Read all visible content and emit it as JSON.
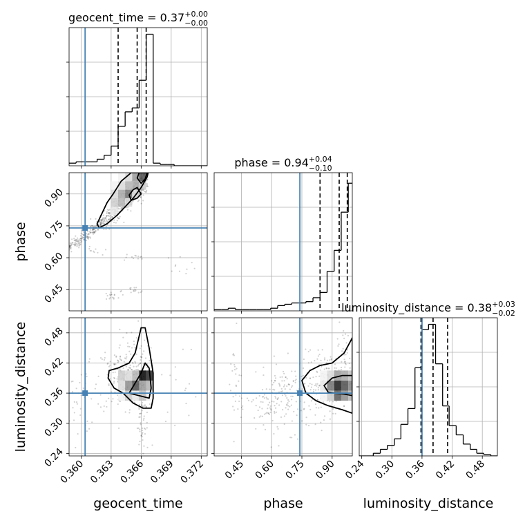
{
  "figure": {
    "style": {
      "grid_color": "#b0b0b0",
      "hist_color": "#000000",
      "truth_color": "#4682b4",
      "sample_color": "#000000"
    }
  },
  "chart_data": {
    "type": "corner",
    "parameters": [
      "geocent_time",
      "phase",
      "luminosity_distance"
    ],
    "truths": {
      "geocent_time": 0.3604,
      "phase": 0.74,
      "luminosity_distance": 0.36
    },
    "diagonal": [
      {
        "name": "geocent_time",
        "title_prefix": "geocent_time = 0.37",
        "title_sup": "+0.00",
        "title_sub": "−0.00",
        "xlim": [
          0.3588,
          0.3726
        ],
        "ticks": [
          0.36,
          0.363,
          0.366,
          0.369,
          0.372
        ],
        "tick_labels": [
          "0.360",
          "0.363",
          "0.366",
          "0.369",
          "0.372"
        ],
        "axis_label": "geocent_time",
        "quantiles": [
          0.3637,
          0.3656,
          0.3665
        ],
        "ylim": [
          0,
          1.05
        ],
        "hist": {
          "edges": [
            0.3588,
            0.3595,
            0.3602,
            0.3609,
            0.3616,
            0.3623,
            0.363,
            0.3637,
            0.3644,
            0.3651,
            0.3658,
            0.3665,
            0.3672,
            0.3679,
            0.3686,
            0.3693,
            0.37,
            0.3707,
            0.3714,
            0.3721,
            0.3726
          ],
          "counts": [
            0.02,
            0.03,
            0.03,
            0.03,
            0.05,
            0.08,
            0.15,
            0.3,
            0.41,
            0.44,
            0.65,
            1.0,
            0.02,
            0.01,
            0.01,
            0.0,
            0.0,
            0.0,
            0.0,
            0.0
          ]
        }
      },
      {
        "name": "phase",
        "title_prefix": "phase = 0.94",
        "title_sup": "+0.04",
        "title_sub": "−0.10",
        "xlim": [
          0.315,
          1.0
        ],
        "ticks": [
          0.45,
          0.6,
          0.75,
          0.9
        ],
        "tick_labels": [
          "0.45",
          "0.60",
          "0.75",
          "0.90"
        ],
        "axis_label": "phase",
        "quantiles": [
          0.84,
          0.935,
          0.975
        ],
        "ylim": [
          0,
          1.05
        ],
        "hist": {
          "edges": [
            0.315,
            0.35,
            0.385,
            0.42,
            0.455,
            0.49,
            0.525,
            0.56,
            0.595,
            0.63,
            0.665,
            0.7,
            0.735,
            0.77,
            0.805,
            0.84,
            0.875,
            0.91,
            0.945,
            0.98,
            1.0
          ],
          "counts": [
            0.01,
            0.01,
            0.02,
            0.01,
            0.01,
            0.01,
            0.01,
            0.01,
            0.02,
            0.04,
            0.05,
            0.06,
            0.06,
            0.07,
            0.1,
            0.14,
            0.3,
            0.46,
            0.75,
            0.97
          ]
        }
      },
      {
        "name": "luminosity_distance",
        "title_prefix": "luminosity_distance = 0.38",
        "title_sup": "+0.03",
        "title_sub": "−0.02",
        "xlim": [
          0.235,
          0.51
        ],
        "ticks": [
          0.24,
          0.3,
          0.36,
          0.42,
          0.48
        ],
        "tick_labels": [
          "0.24",
          "0.30",
          "0.36",
          "0.42",
          "0.48"
        ],
        "axis_label": "luminosity_distance",
        "quantiles": [
          0.358,
          0.382,
          0.411
        ],
        "ylim": [
          0,
          1.05
        ],
        "hist": {
          "edges": [
            0.235,
            0.249,
            0.263,
            0.277,
            0.291,
            0.305,
            0.318,
            0.332,
            0.346,
            0.36,
            0.373,
            0.387,
            0.401,
            0.414,
            0.428,
            0.442,
            0.456,
            0.469,
            0.483,
            0.497,
            0.51
          ],
          "counts": [
            0.0,
            0.0,
            0.02,
            0.05,
            0.08,
            0.13,
            0.24,
            0.36,
            0.67,
            0.96,
            1.0,
            0.7,
            0.38,
            0.23,
            0.16,
            0.09,
            0.05,
            0.02,
            0.01,
            0.0
          ]
        }
      }
    ],
    "off_diagonal": [
      {
        "x": "geocent_time",
        "y": "phase",
        "ylim": [
          0.35,
          1.0
        ],
        "yticks": [
          0.45,
          0.6,
          0.75,
          0.9
        ],
        "ytick_labels": [
          "0.45",
          "0.60",
          "0.75",
          "0.90"
        ],
        "y_axis_label": "phase",
        "scatter": [
          {
            "x": 0.3588,
            "y": 0.65,
            "n": 35,
            "sx": 0.0002,
            "sy": 0.012
          },
          {
            "x": 0.3596,
            "y": 0.672,
            "n": 40,
            "sx": 0.00025,
            "sy": 0.012
          },
          {
            "x": 0.3604,
            "y": 0.7,
            "n": 45,
            "sx": 0.00025,
            "sy": 0.013
          },
          {
            "x": 0.3612,
            "y": 0.735,
            "n": 45,
            "sx": 0.00025,
            "sy": 0.014
          },
          {
            "x": 0.362,
            "y": 0.765,
            "n": 50,
            "sx": 0.0003,
            "sy": 0.015
          },
          {
            "x": 0.3628,
            "y": 0.795,
            "n": 50,
            "sx": 0.0003,
            "sy": 0.018
          },
          {
            "x": 0.3636,
            "y": 0.83,
            "n": 55,
            "sx": 0.0003,
            "sy": 0.025
          },
          {
            "x": 0.3646,
            "y": 0.87,
            "n": 70,
            "sx": 0.0004,
            "sy": 0.03
          },
          {
            "x": 0.3656,
            "y": 0.915,
            "n": 80,
            "sx": 0.0004,
            "sy": 0.03
          },
          {
            "x": 0.3662,
            "y": 0.955,
            "n": 60,
            "sx": 0.0003,
            "sy": 0.025
          },
          {
            "x": 0.3612,
            "y": 0.63,
            "n": 10,
            "sx": 0.0004,
            "sy": 0.01
          },
          {
            "x": 0.365,
            "y": 0.6,
            "n": 12,
            "sx": 0.0008,
            "sy": 0.01
          },
          {
            "x": 0.37,
            "y": 0.57,
            "n": 10,
            "sx": 0.0008,
            "sy": 0.02
          },
          {
            "x": 0.363,
            "y": 0.42,
            "n": 18,
            "sx": 0.0005,
            "sy": 0.012
          },
          {
            "x": 0.3652,
            "y": 0.44,
            "n": 15,
            "sx": 0.0006,
            "sy": 0.012
          }
        ],
        "density": {
          "x_edges": [
            0.363,
            0.3637,
            0.3644,
            0.3651,
            0.3658,
            0.3665,
            0.3672
          ],
          "y_edges": [
            0.8,
            0.84,
            0.88,
            0.92,
            0.96,
            1.0
          ],
          "values": [
            [
              0.1,
              0.2,
              0.15,
              0.05,
              0.0,
              0.0
            ],
            [
              0.0,
              0.3,
              0.35,
              0.15,
              0.05,
              0.0
            ],
            [
              0.0,
              0.15,
              0.55,
              0.3,
              0.15,
              0.05
            ],
            [
              0.0,
              0.0,
              0.15,
              0.35,
              0.4,
              0.3
            ],
            [
              0.0,
              0.0,
              0.0,
              0.2,
              0.7,
              0.95
            ]
          ]
        },
        "contours": [
          [
            [
              0.3618,
              0.74
            ],
            [
              0.3626,
              0.76
            ],
            [
              0.3636,
              0.8
            ],
            [
              0.3646,
              0.85
            ],
            [
              0.3652,
              0.88
            ],
            [
              0.366,
              0.93
            ],
            [
              0.3666,
              0.98
            ],
            [
              0.3667,
              1.0
            ],
            [
              0.365,
              1.0
            ],
            [
              0.364,
              0.96
            ],
            [
              0.3632,
              0.9
            ],
            [
              0.3626,
              0.86
            ],
            [
              0.362,
              0.8
            ],
            [
              0.3616,
              0.76
            ]
          ],
          [
            [
              0.365,
              0.87
            ],
            [
              0.3656,
              0.88
            ],
            [
              0.366,
              0.9
            ],
            [
              0.3656,
              0.93
            ],
            [
              0.3652,
              0.92
            ],
            [
              0.3648,
              0.895
            ]
          ],
          [
            [
              0.366,
              0.95
            ],
            [
              0.3664,
              0.97
            ],
            [
              0.3666,
              1.0
            ],
            [
              0.3658,
              1.0
            ],
            [
              0.3656,
              0.975
            ]
          ]
        ]
      },
      {
        "x": "geocent_time",
        "y": "luminosity_distance",
        "ylim": [
          0.235,
          0.51
        ],
        "yticks": [
          0.24,
          0.3,
          0.36,
          0.42,
          0.48
        ],
        "ytick_labels": [
          "0.24",
          "0.30",
          "0.36",
          "0.42",
          "0.48"
        ],
        "y_axis_label": "luminosity_distance",
        "scatter": [
          {
            "x": 0.364,
            "y": 0.39,
            "n": 140,
            "sx": 0.0012,
            "sy": 0.035
          },
          {
            "x": 0.3652,
            "y": 0.41,
            "n": 100,
            "sx": 0.0008,
            "sy": 0.04
          },
          {
            "x": 0.366,
            "y": 0.34,
            "n": 50,
            "sx": 0.0005,
            "sy": 0.035
          },
          {
            "x": 0.3662,
            "y": 0.28,
            "n": 25,
            "sx": 0.0004,
            "sy": 0.025
          },
          {
            "x": 0.3598,
            "y": 0.34,
            "n": 35,
            "sx": 0.0006,
            "sy": 0.04
          },
          {
            "x": 0.37,
            "y": 0.38,
            "n": 15,
            "sx": 0.001,
            "sy": 0.04
          }
        ],
        "density": {
          "x_edges": [
            0.3637,
            0.3644,
            0.3651,
            0.3658,
            0.3665,
            0.3672
          ],
          "y_edges": [
            0.345,
            0.365,
            0.385,
            0.405
          ],
          "values": [
            [
              0.05,
              0.15,
              0.2
            ],
            [
              0.2,
              0.45,
              0.15
            ],
            [
              0.1,
              0.7,
              0.3
            ],
            [
              0.25,
              0.4,
              1.0
            ],
            [
              0.05,
              0.3,
              0.85
            ]
          ]
        },
        "contours": [
          [
            [
              0.3637,
              0.41
            ],
            [
              0.3648,
              0.42
            ],
            [
              0.3654,
              0.44
            ],
            [
              0.366,
              0.49
            ],
            [
              0.3664,
              0.49
            ],
            [
              0.3668,
              0.45
            ],
            [
              0.3672,
              0.4
            ],
            [
              0.3672,
              0.35
            ],
            [
              0.367,
              0.33
            ],
            [
              0.3662,
              0.33
            ],
            [
              0.3652,
              0.34
            ],
            [
              0.3642,
              0.36
            ],
            [
              0.3633,
              0.37
            ],
            [
              0.3627,
              0.39
            ],
            [
              0.3628,
              0.405
            ]
          ],
          [
            [
              0.3648,
              0.36
            ],
            [
              0.3658,
              0.355
            ],
            [
              0.3668,
              0.35
            ],
            [
              0.367,
              0.37
            ],
            [
              0.3668,
              0.41
            ],
            [
              0.3664,
              0.42
            ],
            [
              0.366,
              0.4
            ],
            [
              0.3654,
              0.38
            ]
          ]
        ]
      },
      {
        "x": "phase",
        "y": "luminosity_distance",
        "ylim": [
          0.235,
          0.51
        ],
        "scatter": [
          {
            "x": 0.88,
            "y": 0.38,
            "n": 160,
            "sx": 0.07,
            "sy": 0.03
          },
          {
            "x": 0.7,
            "y": 0.355,
            "n": 130,
            "sx": 0.08,
            "sy": 0.035
          },
          {
            "x": 0.58,
            "y": 0.33,
            "n": 60,
            "sx": 0.05,
            "sy": 0.03
          },
          {
            "x": 0.42,
            "y": 0.37,
            "n": 30,
            "sx": 0.02,
            "sy": 0.05
          },
          {
            "x": 0.96,
            "y": 0.44,
            "n": 40,
            "sx": 0.03,
            "sy": 0.04
          }
        ],
        "density": {
          "x_edges": [
            0.84,
            0.875,
            0.91,
            0.945,
            0.98,
            1.0
          ],
          "y_edges": [
            0.345,
            0.365,
            0.385,
            0.405
          ],
          "values": [
            [
              0.05,
              0.1,
              0.05
            ],
            [
              0.2,
              0.55,
              0.15
            ],
            [
              0.65,
              0.9,
              0.4
            ],
            [
              0.45,
              0.7,
              0.35
            ],
            [
              0.3,
              0.5,
              0.25
            ]
          ]
        },
        "contours": [
          [
            [
              0.75,
              0.385
            ],
            [
              0.79,
              0.405
            ],
            [
              0.84,
              0.415
            ],
            [
              0.9,
              0.42
            ],
            [
              0.96,
              0.44
            ],
            [
              1.0,
              0.47
            ],
            [
              1.0,
              0.32
            ],
            [
              0.95,
              0.327
            ],
            [
              0.88,
              0.335
            ],
            [
              0.82,
              0.345
            ],
            [
              0.77,
              0.36
            ]
          ],
          [
            [
              0.86,
              0.375
            ],
            [
              0.9,
              0.39
            ],
            [
              0.95,
              0.395
            ],
            [
              1.0,
              0.395
            ],
            [
              1.0,
              0.355
            ],
            [
              0.96,
              0.358
            ],
            [
              0.91,
              0.36
            ],
            [
              0.88,
              0.362
            ]
          ]
        ]
      }
    ]
  }
}
